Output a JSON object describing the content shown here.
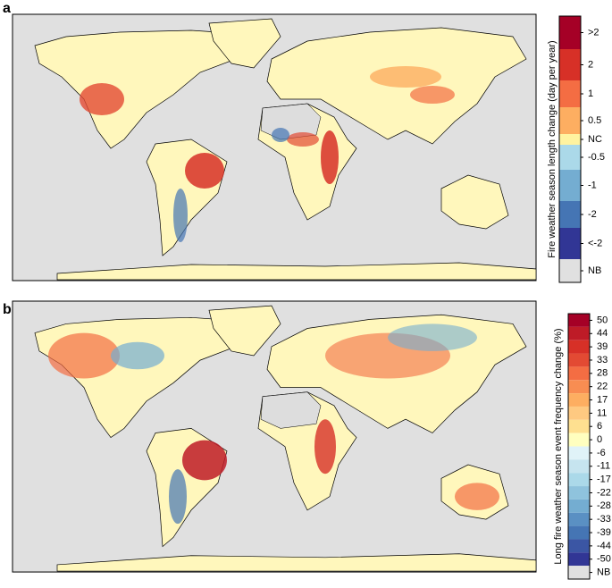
{
  "panels": [
    {
      "label": "a",
      "colorbar": {
        "title": "Fire weather season length change (day per year)",
        "labels": [
          ">2",
          "2",
          "1",
          "0.5",
          "NC",
          "-0.5",
          "-1",
          "-2",
          "<-2",
          "NB"
        ],
        "colors": [
          "#a50026",
          "#d73027",
          "#f46d43",
          "#fdae61",
          "#fff3a0",
          "#abd9e9",
          "#74add1",
          "#4575b4",
          "#313695",
          "#e0e0e0"
        ]
      }
    },
    {
      "label": "b",
      "colorbar": {
        "title": "Long fire weather season event frequency change (%)",
        "labels": [
          "50",
          "44",
          "39",
          "33",
          "28",
          "22",
          "17",
          "11",
          "6",
          "0",
          "-6",
          "-11",
          "-17",
          "-22",
          "-28",
          "-33",
          "-39",
          "-44",
          "-50",
          "NB"
        ],
        "colors": [
          "#a50026",
          "#be1b27",
          "#d73027",
          "#e34a33",
          "#f46d43",
          "#f88d52",
          "#fdae61",
          "#fec981",
          "#fee090",
          "#ffffbf",
          "#e0f3f8",
          "#c6e4ef",
          "#abd9e9",
          "#8fc3dd",
          "#74add1",
          "#5a90c3",
          "#4575b4",
          "#3b56a4",
          "#313695",
          "#e0e0e0"
        ]
      }
    }
  ]
}
